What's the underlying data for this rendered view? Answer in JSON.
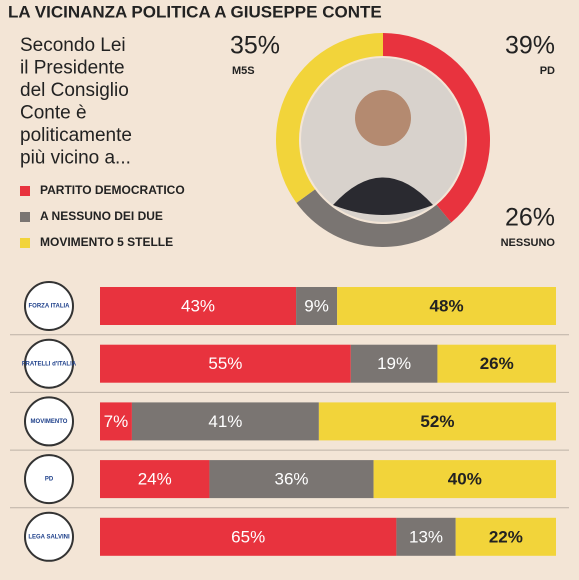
{
  "title": "LA VICINANZA POLITICA A GIUSEPPE CONTE",
  "question": [
    "Secondo Lei",
    "il Presidente",
    "del Consiglio",
    "Conte è",
    "politicamente",
    "più vicino a..."
  ],
  "chart_data": [
    {
      "type": "pie",
      "categories": [
        "PD",
        "NESSUNO",
        "M5S"
      ],
      "values": [
        39,
        26,
        35
      ],
      "value_labels": [
        "39%",
        "26%",
        "35%"
      ],
      "colors": [
        "#e8333e",
        "#7a7572",
        "#f2d43a"
      ]
    },
    {
      "type": "bar",
      "orientation": "horizontal",
      "stacked": true,
      "categories": [
        "FORZA ITALIA",
        "FRATELLI d'ITALIA",
        "MOVIMENTO",
        "PD",
        "LEGA SALVINI"
      ],
      "xlim": [
        0,
        100
      ],
      "series": [
        {
          "name": "PARTITO DEMOCRATICO",
          "color": "#e8333e",
          "values": [
            43,
            55,
            7,
            24,
            65
          ],
          "value_labels": [
            "43%",
            "55%",
            "7%",
            "24%",
            "65%"
          ]
        },
        {
          "name": "A NESSUNO DEI DUE",
          "color": "#7a7572",
          "values": [
            9,
            19,
            41,
            36,
            13
          ],
          "value_labels": [
            "9%",
            "19%",
            "41%",
            "36%",
            "13%"
          ]
        },
        {
          "name": "MOVIMENTO 5 STELLE",
          "color": "#f2d43a",
          "values": [
            48,
            26,
            52,
            40,
            22
          ],
          "value_labels": [
            "48%",
            "26%",
            "52%",
            "40%",
            "22%"
          ]
        }
      ]
    }
  ]
}
